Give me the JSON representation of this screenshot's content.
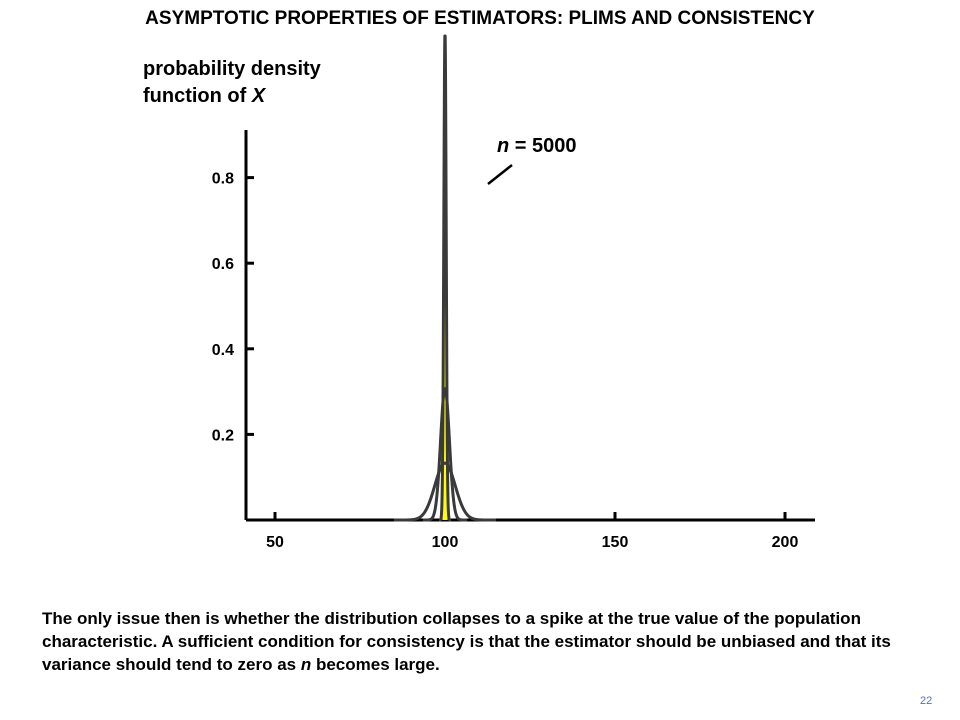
{
  "slide": {
    "title": "ASYMPTOTIC PROPERTIES OF ESTIMATORS: PLIMS AND CONSISTENCY",
    "caption_part1": "The only issue then is whether the distribution collapses to a spike at the true value of the population characteristic.  A sufficient condition for consistency is that the estimator should be unbiased and that its variance should tend to zero as ",
    "caption_n": "n",
    "caption_part2": " becomes large.",
    "page_number": "22"
  },
  "chart_data": {
    "type": "line",
    "ylabel_line1": "probability density",
    "ylabel_line2_prefix": "function of ",
    "ylabel_var": "X",
    "series_label_n": "n",
    "series_label_rest": " = 5000",
    "x_ticks": [
      "50",
      "100",
      "150",
      "200"
    ],
    "x_tick_values": [
      50,
      100,
      150,
      200
    ],
    "y_ticks": [
      "0.2",
      "0.4",
      "0.6",
      "0.8"
    ],
    "y_tick_values": [
      0.2,
      0.4,
      0.6,
      0.8
    ],
    "xlim": [
      20,
      240
    ],
    "ylim": [
      0,
      1.1
    ],
    "true_value": 100,
    "series": [
      {
        "name": "n = 5000",
        "mean": 100,
        "sd": 0.35
      },
      {
        "mean": 100,
        "sd": 1.3
      },
      {
        "mean": 100,
        "sd": 3.0
      }
    ],
    "colors": {
      "curves": "#3a3a3a",
      "spike": "#ffff00",
      "axis": "#000000"
    }
  }
}
